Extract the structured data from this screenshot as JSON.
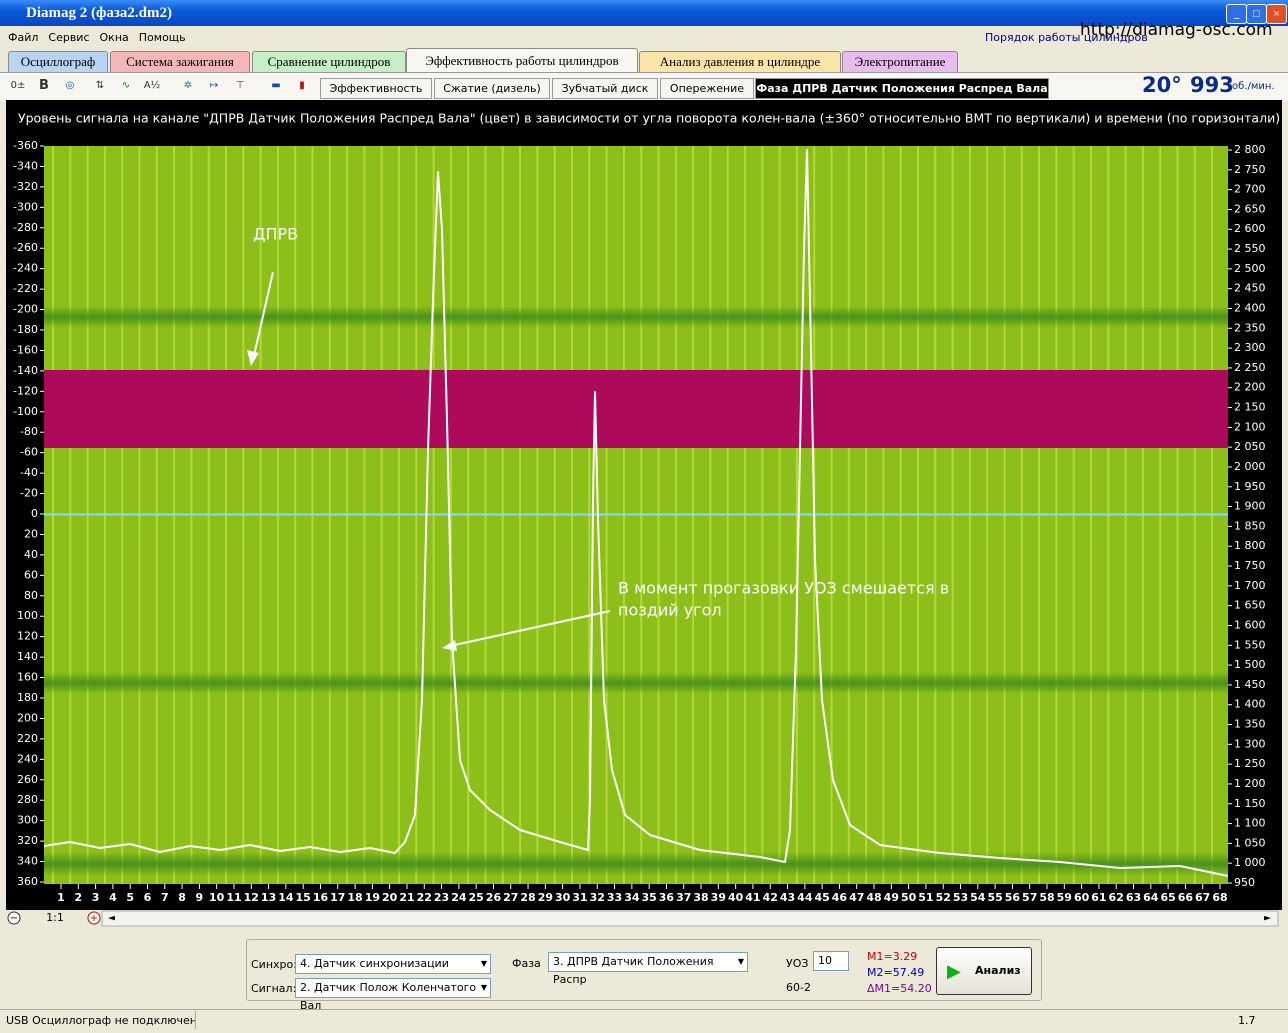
{
  "window": {
    "title": "Diamag 2 (фаза2.dm2)",
    "website": "http://diamag-osc.com",
    "cylinder_order": "Порядок работы цилиндров"
  },
  "menu": [
    "Файл",
    "Сервис",
    "Окна",
    "Помощь"
  ],
  "tabs": [
    "Осциллограф",
    "Система зажигания",
    "Сравнение цилиндров",
    "Эффективность работы цилиндров",
    "Анализ давления в цилиндре",
    "Электропитание"
  ],
  "sub_tabs": [
    "Эффективность",
    "Сжатие (дизель)",
    "Зубчатый диск",
    "Опережение",
    "Фаза ДПРВ Датчик Положения Распред Вала"
  ],
  "readout": {
    "angle": "20°",
    "rpm": "993",
    "rpm_unit": "об./мин."
  },
  "plot": {
    "title": "Уровень сигнала на канале \"ДПРВ Датчик Положения Распред Вала\" (цвет) в зависимости от угла поворота колен-вала (±360° относительно ВМТ по вертикали) и времени (по горизонтали)",
    "left_ticks": [
      -360,
      -340,
      -320,
      -300,
      -280,
      -260,
      -240,
      -220,
      -200,
      -180,
      -160,
      -140,
      -120,
      -100,
      -80,
      -60,
      -40,
      -20,
      0,
      20,
      40,
      60,
      80,
      100,
      120,
      140,
      160,
      180,
      200,
      220,
      240,
      260,
      280,
      300,
      320,
      340,
      360
    ],
    "right_ticks": [
      {
        "value": 2800,
        "label": "2 800"
      },
      {
        "value": 2750,
        "label": "2 750"
      },
      {
        "value": 2700,
        "label": "2 700"
      },
      {
        "value": 2650,
        "label": "2 650"
      },
      {
        "value": 2600,
        "label": "2 600"
      },
      {
        "value": 2550,
        "label": "2 550"
      },
      {
        "value": 2500,
        "label": "2 500"
      },
      {
        "value": 2450,
        "label": "2 450"
      },
      {
        "value": 2400,
        "label": "2 400"
      },
      {
        "value": 2350,
        "label": "2 350"
      },
      {
        "value": 2300,
        "label": "2 300"
      },
      {
        "value": 2250,
        "label": "2 250"
      },
      {
        "value": 2200,
        "label": "2 200"
      },
      {
        "value": 2150,
        "label": "2 150"
      },
      {
        "value": 2100,
        "label": "2 100"
      },
      {
        "value": 2050,
        "label": "2 050"
      },
      {
        "value": 2000,
        "label": "2 000"
      },
      {
        "value": 1950,
        "label": "1 950"
      },
      {
        "value": 1900,
        "label": "1 900"
      },
      {
        "value": 1850,
        "label": "1 850"
      },
      {
        "value": 1800,
        "label": "1 800"
      },
      {
        "value": 1750,
        "label": "1 750"
      },
      {
        "value": 1700,
        "label": "1 700"
      },
      {
        "value": 1650,
        "label": "1 650"
      },
      {
        "value": 1600,
        "label": "1 600"
      },
      {
        "value": 1550,
        "label": "1 550"
      },
      {
        "value": 1500,
        "label": "1 500"
      },
      {
        "value": 1450,
        "label": "1 450"
      },
      {
        "value": 1400,
        "label": "1 400"
      },
      {
        "value": 1350,
        "label": "1 350"
      },
      {
        "value": 1300,
        "label": "1 300"
      },
      {
        "value": 1250,
        "label": "1 250"
      },
      {
        "value": 1200,
        "label": "1 200"
      },
      {
        "value": 1150,
        "label": "1 150"
      },
      {
        "value": 1100,
        "label": "1 100"
      },
      {
        "value": 1050,
        "label": "1 050"
      },
      {
        "value": 1000,
        "label": "1 000"
      },
      950
    ],
    "x_ticks": [
      1,
      2,
      3,
      4,
      5,
      6,
      7,
      8,
      9,
      10,
      11,
      12,
      13,
      14,
      15,
      16,
      17,
      18,
      19,
      20,
      21,
      22,
      23,
      24,
      25,
      26,
      27,
      28,
      29,
      30,
      31,
      32,
      33,
      34,
      35,
      36,
      37,
      38,
      39,
      40,
      41,
      42,
      43,
      44,
      45,
      46,
      47,
      48,
      49,
      50,
      51,
      52,
      53,
      54,
      55,
      56,
      57,
      58,
      59,
      60,
      61,
      62,
      63,
      64,
      65,
      66,
      67,
      68
    ],
    "annotations": [
      "ДПРВ",
      "В момент прогазовки УОЗ смешается в",
      "поздий угол"
    ]
  },
  "scroll": {
    "zoom": "1:1"
  },
  "controls": {
    "sync_label": "Синхро:",
    "sync_value": "4. Датчик синхронизации",
    "signal_label": "Сигнал:",
    "signal_value": "2. Датчик Полож Коленчатого Вал",
    "phase_label": "Фаза",
    "phase_value": "3. ДПРВ Датчик Положения Распр",
    "uoz_label": "УОЗ",
    "uoz_value": "10",
    "wheel": "60-2",
    "m1": "M1=3.29",
    "m2": "M2=57.49",
    "dm1": "ΔM1=54.20",
    "analyze": "Анализ"
  },
  "status": {
    "message": "USB Осциллограф не подключен",
    "version": "1.7"
  }
}
